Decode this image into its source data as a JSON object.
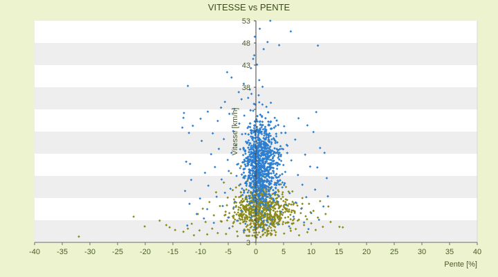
{
  "chart_data": {
    "type": "scatter",
    "title": "VITESSE vs PENTE",
    "xlabel": "Pente [%]",
    "ylabel": "Vitesse [km/h]",
    "xlim": [
      -40,
      40
    ],
    "ylim": [
      3,
      53
    ],
    "x_ticks": [
      -40,
      -35,
      -30,
      -25,
      -20,
      -15,
      -10,
      -5,
      0,
      5,
      10,
      15,
      20,
      25,
      30,
      35,
      40
    ],
    "y_ticks": [
      3,
      8,
      13,
      18,
      23,
      28,
      33,
      38,
      43,
      48,
      53
    ],
    "y_tick_labels": [
      "3",
      "",
      "",
      "",
      "",
      "",
      "",
      "38",
      "43",
      "48",
      "53"
    ],
    "background_bands": true,
    "band_colors": [
      "#ffffff",
      "#eeeeee"
    ],
    "plot_background": "#ffffff",
    "page_background": "#eef3cf",
    "series": [
      {
        "color": "#2f7fd0",
        "marker": "diamond",
        "points": [
          [
            2.6,
            53
          ],
          [
            0.7,
            51.2
          ],
          [
            6.3,
            50.6
          ],
          [
            -0.2,
            49.4
          ],
          [
            11.2,
            47.4
          ],
          [
            4.2,
            47.5
          ],
          [
            2.1,
            48.2
          ],
          [
            1.4,
            46.6
          ],
          [
            -0.3,
            45.2
          ],
          [
            -0.5,
            44.4
          ],
          [
            0.2,
            43.1
          ],
          [
            -0.9,
            42.3
          ],
          [
            -5.2,
            41.4
          ],
          [
            -4.4,
            40.2
          ],
          [
            0.6,
            39.6
          ],
          [
            -2.2,
            38.8
          ],
          [
            -12.3,
            38.3
          ],
          [
            1.2,
            38.1
          ],
          [
            -1.1,
            37.5
          ],
          [
            -3.1,
            36.9
          ],
          [
            -0.8,
            36.5
          ],
          [
            0.5,
            36.2
          ],
          [
            -1.4,
            35.6
          ],
          [
            -2.6,
            35.3
          ],
          [
            -5.6,
            34.7
          ],
          [
            2.7,
            34.5
          ],
          [
            -0.1,
            34.1
          ],
          [
            1.9,
            33.6
          ],
          [
            -6.3,
            33.4
          ],
          [
            -3.9,
            33.1
          ],
          [
            -0.5,
            32.7
          ],
          [
            -13.0,
            32.2
          ],
          [
            -8.7,
            32.5
          ],
          [
            10.9,
            32.4
          ],
          [
            -4.8,
            32.0
          ],
          [
            -2.1,
            31.6
          ],
          [
            1.1,
            31.3
          ],
          [
            3.4,
            31.1
          ],
          [
            7.7,
            31.0
          ],
          [
            -13.1,
            31.1
          ],
          [
            -10.0,
            30.9
          ],
          [
            -6.9,
            30.4
          ],
          [
            -0.2,
            30.3
          ],
          [
            -3.0,
            29.8
          ],
          [
            2.3,
            29.6
          ],
          [
            5.1,
            29.2
          ],
          [
            9.3,
            29.4
          ],
          [
            -11.4,
            29.3
          ],
          [
            -13.3,
            28.9
          ],
          [
            -1.5,
            28.8
          ],
          [
            0.8,
            28.5
          ],
          [
            -4.1,
            28.1
          ],
          [
            4.6,
            27.7
          ],
          [
            -7.8,
            27.6
          ],
          [
            -12.1,
            27.7
          ],
          [
            10.4,
            27.9
          ],
          [
            -2.5,
            27.4
          ],
          [
            1.5,
            27.1
          ],
          [
            -0.6,
            26.8
          ],
          [
            3.2,
            26.5
          ],
          [
            -5.8,
            26.3
          ],
          [
            7.1,
            26.2
          ],
          [
            -9.8,
            25.9
          ],
          [
            -1.8,
            25.7
          ],
          [
            0.3,
            25.4
          ],
          [
            2.8,
            25.2
          ],
          [
            -3.6,
            24.9
          ],
          [
            5.7,
            24.8
          ],
          [
            -0.9,
            24.5
          ],
          [
            1.8,
            24.2
          ],
          [
            -6.7,
            24.1
          ],
          [
            11.6,
            24.3
          ],
          [
            12.4,
            23.2
          ],
          [
            -1.2,
            23.9
          ],
          [
            0.5,
            23.6
          ],
          [
            3.9,
            23.4
          ],
          [
            -4.4,
            23.2
          ],
          [
            -8.1,
            22.9
          ],
          [
            8.9,
            22.8
          ],
          [
            -2.3,
            22.7
          ],
          [
            0.9,
            22.4
          ],
          [
            -0.4,
            22.1
          ],
          [
            2.1,
            21.9
          ],
          [
            -5.1,
            21.6
          ],
          [
            6.4,
            21.5
          ],
          [
            -12.6,
            21.2
          ],
          [
            -11.9,
            20.7
          ],
          [
            -1.6,
            21.3
          ],
          [
            1.2,
            21.0
          ],
          [
            -3.2,
            20.7
          ],
          [
            4.3,
            20.6
          ],
          [
            -0.7,
            20.4
          ],
          [
            9.8,
            20.1
          ],
          [
            11.1,
            19.9
          ],
          [
            -7.4,
            20.0
          ],
          [
            2.6,
            19.8
          ],
          [
            -2.0,
            19.6
          ],
          [
            0.1,
            19.3
          ],
          [
            -4.9,
            19.1
          ],
          [
            5.3,
            18.9
          ],
          [
            -9.2,
            18.7
          ],
          [
            -1.0,
            18.6
          ],
          [
            1.7,
            18.4
          ],
          [
            7.6,
            18.2
          ],
          [
            -3.5,
            18.0
          ],
          [
            0.6,
            17.8
          ],
          [
            3.0,
            17.6
          ],
          [
            -0.3,
            17.4
          ],
          [
            -6.2,
            17.2
          ],
          [
            12.8,
            17.5
          ],
          [
            -11.7,
            17.1
          ],
          [
            2.2,
            16.9
          ],
          [
            -1.7,
            16.7
          ],
          [
            4.8,
            16.5
          ],
          [
            0.2,
            16.3
          ],
          [
            -2.8,
            16.1
          ],
          [
            8.4,
            16.0
          ],
          [
            -8.6,
            15.8
          ],
          [
            1.0,
            15.6
          ],
          [
            -0.9,
            15.4
          ],
          [
            3.6,
            15.2
          ],
          [
            -4.6,
            15.1
          ],
          [
            10.7,
            14.9
          ],
          [
            -12.8,
            14.6
          ],
          [
            -1.3,
            14.7
          ],
          [
            2.4,
            14.5
          ],
          [
            -5.6,
            14.2
          ],
          [
            6.1,
            14.1
          ],
          [
            0.4,
            13.9
          ],
          [
            -2.4,
            13.7
          ],
          [
            4.1,
            13.5
          ],
          [
            -7.1,
            13.3
          ],
          [
            9.1,
            13.2
          ],
          [
            13.0,
            13.4
          ],
          [
            -10.1,
            12.9
          ],
          [
            1.4,
            12.8
          ],
          [
            -0.5,
            12.6
          ],
          [
            3.3,
            12.4
          ],
          [
            -3.8,
            12.2
          ],
          [
            7.2,
            12.0
          ],
          [
            -12.0,
            11.7
          ],
          [
            -1.1,
            11.8
          ],
          [
            0.8,
            11.6
          ],
          [
            5.5,
            11.4
          ],
          [
            -6.0,
            11.2
          ],
          [
            12.2,
            11.1
          ],
          [
            -4.0,
            10.9
          ],
          [
            2.0,
            10.8
          ],
          [
            8.2,
            10.6
          ],
          [
            -8.8,
            10.5
          ],
          [
            0.0,
            10.3
          ],
          [
            -2.6,
            10.1
          ],
          [
            4.6,
            9.9
          ],
          [
            10.0,
            9.6
          ],
          [
            -10.7,
            9.4
          ],
          [
            1.6,
            9.2
          ],
          [
            -0.8,
            9.0
          ],
          [
            6.8,
            8.8
          ],
          [
            -5.0,
            8.6
          ],
          [
            -9.4,
            8.4
          ],
          [
            2.9,
            8.2
          ],
          [
            11.4,
            8.1
          ],
          [
            -3.4,
            7.9
          ],
          [
            0.5,
            7.7
          ],
          [
            8.7,
            7.5
          ],
          [
            -7.6,
            7.4
          ],
          [
            -1.9,
            7.2
          ],
          [
            4.0,
            7.0
          ],
          [
            -12.4,
            6.8
          ],
          [
            6.0,
            6.6
          ],
          [
            -0.3,
            6.4
          ],
          [
            -4.8,
            6.2
          ],
          [
            9.5,
            6.0
          ],
          [
            1.3,
            5.8
          ],
          [
            -2.2,
            5.6
          ]
        ],
        "cluster": {
          "count": 1400,
          "x_center": 0.8,
          "x_spread": 1.9,
          "x_skew": 0.6,
          "y_center": 21,
          "y_spread": 7.5,
          "x_range": [
            -9,
            11
          ],
          "y_range": [
            5,
            36
          ]
        }
      },
      {
        "color": "#8a8a1e",
        "marker": "diamond",
        "points": [
          [
            -32.0,
            4.3
          ],
          [
            -22.1,
            8.8
          ],
          [
            -20.1,
            6.6
          ],
          [
            -17.4,
            7.9
          ],
          [
            -16.2,
            6.9
          ],
          [
            -15.6,
            6.4
          ],
          [
            -14.6,
            5.8
          ],
          [
            -13.1,
            5.4
          ],
          [
            -12.3,
            6.1
          ],
          [
            -11.6,
            7.2
          ],
          [
            -11.2,
            4.6
          ],
          [
            -10.5,
            9.4
          ],
          [
            -10.2,
            5.7
          ],
          [
            -9.6,
            10.6
          ],
          [
            -9.1,
            7.6
          ],
          [
            -8.8,
            4.8
          ],
          [
            -8.4,
            12.1
          ],
          [
            -7.9,
            6.1
          ],
          [
            -7.6,
            9.1
          ],
          [
            -7.2,
            14.3
          ],
          [
            -6.9,
            5.1
          ],
          [
            -6.5,
            11.2
          ],
          [
            -6.2,
            7.7
          ],
          [
            -5.8,
            16.5
          ],
          [
            -5.4,
            4.9
          ],
          [
            -5.1,
            13.1
          ],
          [
            -4.8,
            9.6
          ],
          [
            -4.5,
            18.6
          ],
          [
            -4.2,
            6.6
          ],
          [
            -3.9,
            11.9
          ],
          [
            -3.6,
            15.4
          ],
          [
            -3.3,
            4.4
          ],
          [
            -3.0,
            8.4
          ],
          [
            -2.7,
            20.2
          ],
          [
            -2.4,
            12.8
          ],
          [
            -2.1,
            5.9
          ],
          [
            -1.8,
            10.3
          ],
          [
            -1.5,
            16.9
          ],
          [
            -1.2,
            4.5
          ],
          [
            -0.9,
            7.9
          ],
          [
            -0.6,
            13.6
          ],
          [
            -0.3,
            5.2
          ],
          [
            0.0,
            9.9
          ],
          [
            0.3,
            4.7
          ],
          [
            0.6,
            6.8
          ],
          [
            0.9,
            12.4
          ],
          [
            1.2,
            5.5
          ],
          [
            1.5,
            8.7
          ],
          [
            1.8,
            15.2
          ],
          [
            2.1,
            4.9
          ],
          [
            2.4,
            10.9
          ],
          [
            2.7,
            6.3
          ],
          [
            3.0,
            13.9
          ],
          [
            3.3,
            8.1
          ],
          [
            3.6,
            5.3
          ],
          [
            3.9,
            11.6
          ],
          [
            4.2,
            7.1
          ],
          [
            4.5,
            16.1
          ],
          [
            4.8,
            9.2
          ],
          [
            5.1,
            5.0
          ],
          [
            5.4,
            12.7
          ],
          [
            5.7,
            7.5
          ],
          [
            6.0,
            10.4
          ],
          [
            6.3,
            5.6
          ],
          [
            6.6,
            14.5
          ],
          [
            6.9,
            8.3
          ],
          [
            7.2,
            6.0
          ],
          [
            7.5,
            11.3
          ],
          [
            7.8,
            4.6
          ],
          [
            8.1,
            9.6
          ],
          [
            8.4,
            13.0
          ],
          [
            8.7,
            6.9
          ],
          [
            9.0,
            8.9
          ],
          [
            9.3,
            5.3
          ],
          [
            9.6,
            11.7
          ],
          [
            10.0,
            7.3
          ],
          [
            10.4,
            10.1
          ],
          [
            10.8,
            5.8
          ],
          [
            11.2,
            8.6
          ],
          [
            11.6,
            12.3
          ],
          [
            12.1,
            6.5
          ],
          [
            12.6,
            9.4
          ],
          [
            13.1,
            11.1
          ],
          [
            13.5,
            7.6
          ],
          [
            15.1,
            6.5
          ],
          [
            15.7,
            6.4
          ]
        ],
        "cluster": {
          "count": 650,
          "x_center": 0.9,
          "x_spread": 3.2,
          "x_skew": 0.4,
          "y_center": 10,
          "y_spread": 4.5,
          "x_range": [
            -12,
            14
          ],
          "y_range": [
            4,
            24
          ]
        }
      }
    ]
  }
}
